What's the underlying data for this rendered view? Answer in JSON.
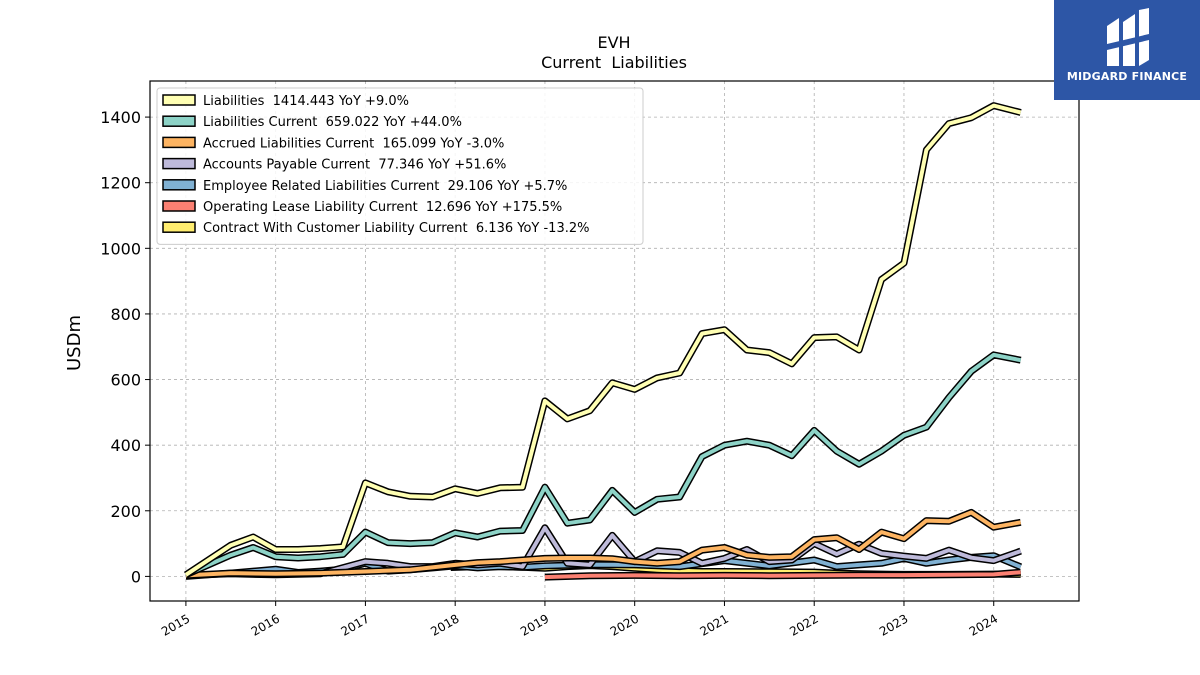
{
  "chart_data": {
    "type": "line",
    "title": "EVH",
    "subtitle": "Current  Liabilities",
    "ylabel": "USDm",
    "xlabel": "",
    "xlim": [
      2014.6,
      2024.95
    ],
    "ylim": [
      -75,
      1510
    ],
    "yticks": [
      0,
      200,
      400,
      600,
      800,
      1000,
      1200,
      1400
    ],
    "xticks": [
      "2015",
      "2016",
      "2017",
      "2018",
      "2019",
      "2020",
      "2021",
      "2022",
      "2023",
      "2024"
    ],
    "grid": true,
    "legend_position": "top-left",
    "series": [
      {
        "name": "Liabilities",
        "legend": "Liabilities  1414.443 YoY +9.0%",
        "color": "#ffffb3",
        "x": [
          2015.0,
          2015.5,
          2015.75,
          2016.0,
          2016.25,
          2016.5,
          2016.75,
          2017.0,
          2017.25,
          2017.5,
          2017.75,
          2018.0,
          2018.25,
          2018.5,
          2018.75,
          2019.0,
          2019.25,
          2019.5,
          2019.75,
          2020.0,
          2020.25,
          2020.5,
          2020.75,
          2021.0,
          2021.25,
          2021.5,
          2021.75,
          2022.0,
          2022.25,
          2022.5,
          2022.75,
          2023.0,
          2023.25,
          2023.5,
          2023.75,
          2024.0,
          2024.3
        ],
        "values": [
          5,
          95,
          120,
          82,
          82,
          85,
          90,
          285,
          258,
          244,
          242,
          267,
          253,
          270,
          272,
          535,
          480,
          505,
          590,
          570,
          605,
          620,
          740,
          752,
          690,
          682,
          648,
          728,
          730,
          690,
          905,
          955,
          1300,
          1380,
          1398,
          1435,
          1414
        ]
      },
      {
        "name": "Liabilities Current",
        "legend": "Liabilities Current  659.022 YoY +44.0%",
        "color": "#8dd3c7",
        "x": [
          2015.0,
          2015.5,
          2015.75,
          2016.0,
          2016.25,
          2016.5,
          2016.75,
          2017.0,
          2017.25,
          2017.5,
          2017.75,
          2018.0,
          2018.25,
          2018.5,
          2018.75,
          2019.0,
          2019.25,
          2019.5,
          2019.75,
          2020.0,
          2020.25,
          2020.5,
          2020.75,
          2021.0,
          2021.25,
          2021.5,
          2021.75,
          2022.0,
          2022.25,
          2022.5,
          2022.75,
          2023.0,
          2023.25,
          2023.5,
          2023.75,
          2024.0,
          2024.3
        ],
        "values": [
          5,
          65,
          88,
          60,
          56,
          60,
          67,
          135,
          103,
          100,
          103,
          133,
          120,
          138,
          140,
          272,
          162,
          172,
          262,
          195,
          235,
          242,
          365,
          400,
          412,
          400,
          368,
          445,
          382,
          342,
          382,
          430,
          455,
          545,
          625,
          675,
          659
        ]
      },
      {
        "name": "Accrued Liabilities Current",
        "legend": "Accrued Liabilities Current  165.099 YoY -3.0%",
        "color": "#fdb462",
        "x": [
          2015.0,
          2015.5,
          2016.0,
          2016.5,
          2017.0,
          2017.5,
          2018.0,
          2018.25,
          2018.5,
          2018.75,
          2019.0,
          2019.25,
          2019.5,
          2019.75,
          2020.0,
          2020.25,
          2020.5,
          2020.75,
          2021.0,
          2021.25,
          2021.5,
          2021.75,
          2022.0,
          2022.25,
          2022.5,
          2022.75,
          2023.0,
          2023.25,
          2023.5,
          2023.75,
          2024.0,
          2024.3
        ],
        "values": [
          3,
          10,
          8,
          10,
          15,
          20,
          35,
          42,
          45,
          50,
          55,
          56,
          56,
          54,
          45,
          40,
          45,
          80,
          88,
          65,
          58,
          60,
          112,
          118,
          82,
          135,
          115,
          170,
          168,
          195,
          150,
          165
        ]
      },
      {
        "name": "Accounts Payable Current",
        "legend": "Accounts Payable Current  77.346 YoY +51.6%",
        "color": "#bebada",
        "x": [
          2015.0,
          2015.5,
          2016.0,
          2016.5,
          2017.0,
          2017.25,
          2017.5,
          2017.75,
          2018.0,
          2018.25,
          2018.5,
          2018.75,
          2019.0,
          2019.25,
          2019.5,
          2019.75,
          2020.0,
          2020.25,
          2020.5,
          2020.75,
          2021.0,
          2021.25,
          2021.5,
          2021.75,
          2022.0,
          2022.25,
          2022.5,
          2022.75,
          2023.0,
          2023.25,
          2023.5,
          2023.75,
          2024.0,
          2024.3
        ],
        "values": [
          3,
          8,
          5,
          8,
          45,
          40,
          30,
          30,
          40,
          35,
          40,
          30,
          148,
          40,
          35,
          125,
          45,
          78,
          73,
          40,
          55,
          82,
          45,
          50,
          100,
          68,
          98,
          70,
          62,
          55,
          80,
          57,
          48,
          77
        ]
      },
      {
        "name": "Employee Related Liabilities Current",
        "legend": "Employee Related Liabilities Current  29.106 YoY +5.7%",
        "color": "#80b1d3",
        "x": [
          2015.0,
          2015.5,
          2016.0,
          2016.25,
          2016.5,
          2016.75,
          2017.0,
          2017.25,
          2017.5,
          2017.75,
          2018.0,
          2018.25,
          2018.5,
          2018.75,
          2019.0,
          2019.5,
          2020.0,
          2020.5,
          2021.0,
          2021.5,
          2022.0,
          2022.25,
          2022.5,
          2022.75,
          2023.0,
          2023.25,
          2023.5,
          2023.75,
          2024.0,
          2024.3
        ],
        "values": [
          0,
          10,
          22,
          12,
          16,
          22,
          40,
          16,
          20,
          26,
          32,
          26,
          30,
          28,
          32,
          36,
          35,
          30,
          48,
          32,
          50,
          30,
          35,
          40,
          55,
          40,
          50,
          58,
          63,
          29
        ]
      },
      {
        "name": "Operating Lease Liability Current",
        "legend": "Operating Lease Liability Current  12.696 YoY +175.5%",
        "color": "#fb8072",
        "x": [
          2019.0,
          2019.5,
          2020.0,
          2020.5,
          2021.0,
          2021.5,
          2022.0,
          2022.5,
          2023.0,
          2023.5,
          2024.0,
          2024.3
        ],
        "values": [
          -2,
          2,
          3,
          2,
          3,
          2,
          3,
          4,
          4,
          5,
          6,
          12.7
        ]
      },
      {
        "name": "Contract With Customer Liability Current",
        "legend": "Contract With Customer Liability Current  6.136 YoY -13.2%",
        "color": "#ffed6f",
        "x": [
          2017.95,
          2018.25,
          2018.5,
          2018.75,
          2019.0,
          2019.25,
          2019.5,
          2019.75,
          2020.0,
          2020.25,
          2020.5,
          2020.75,
          2021.0,
          2021.5,
          2022.0,
          2022.25,
          2022.5,
          2022.75,
          2023.0,
          2023.5,
          2024.0,
          2024.3
        ],
        "values": [
          27,
          30,
          30,
          28,
          25,
          30,
          33,
          30,
          25,
          20,
          17,
          15,
          15,
          14,
          13,
          10,
          8,
          7,
          6,
          6,
          7,
          6.1
        ]
      }
    ]
  },
  "logo": {
    "text": "MIDGARD FINANCE",
    "icon": "midgard-logo-icon",
    "color": "#2d56a6"
  }
}
